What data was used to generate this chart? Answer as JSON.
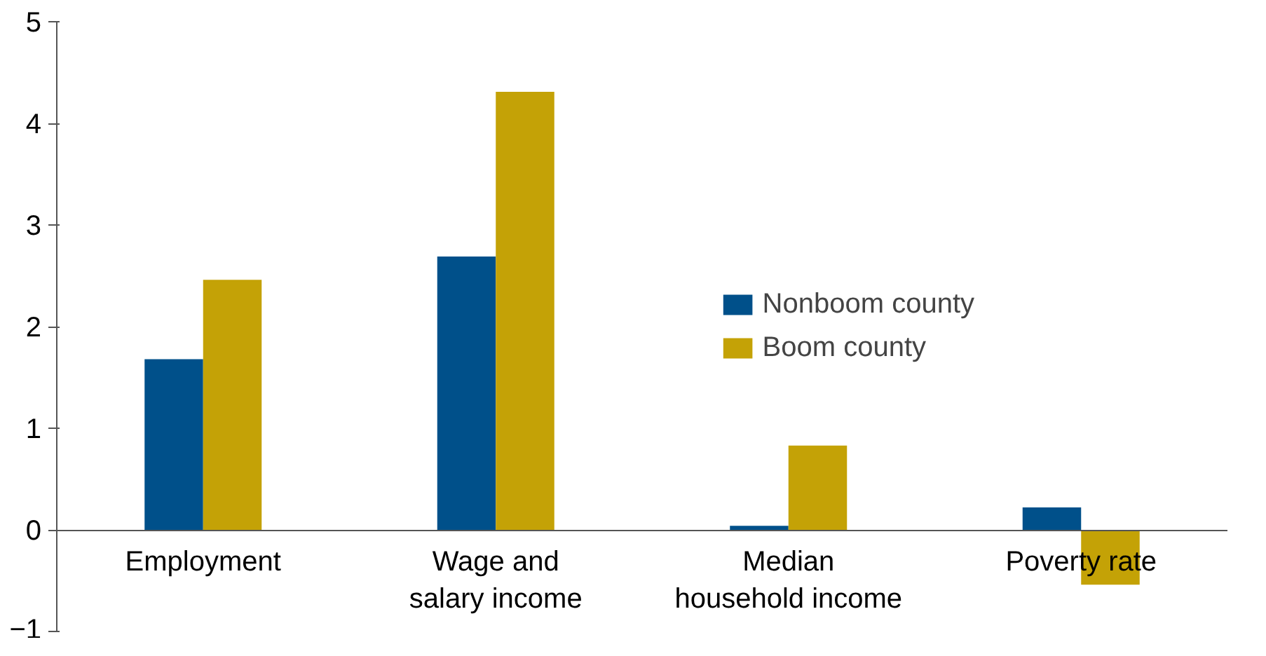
{
  "chart_data": {
    "type": "bar",
    "categories": [
      "Employment",
      "Wage and\nsalary income",
      "Median\nhousehold income",
      "Poverty rate"
    ],
    "series": [
      {
        "name": "Nonboom county",
        "color": "#00508a",
        "values": [
          1.68,
          2.69,
          0.04,
          0.22
        ]
      },
      {
        "name": "Boom county",
        "color": "#c4a206",
        "values": [
          2.46,
          4.31,
          0.83,
          -0.54
        ]
      }
    ],
    "ylim": [
      -1,
      5
    ],
    "yticks": [
      -1,
      0,
      1,
      2,
      3,
      4,
      5
    ],
    "grid": false,
    "legend": "right"
  }
}
